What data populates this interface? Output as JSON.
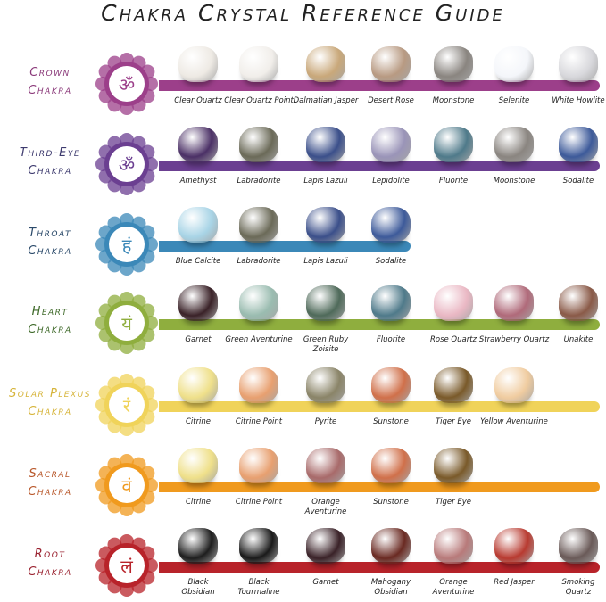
{
  "title": "Chakra Crystal Reference Guide",
  "chakras": [
    {
      "line1": "Crown",
      "line2": "Chakra",
      "color": "#9c3f8a",
      "text_color": "#8b3a7a",
      "symbol": "om-icon",
      "band_end": "full",
      "stones": [
        {
          "name": "Clear Quartz",
          "color": "#eeeae4"
        },
        {
          "name": "Clear Quartz Point",
          "color": "#f1eeea"
        },
        {
          "name": "Dalmatian Jasper",
          "color": "#c9a87a"
        },
        {
          "name": "Desert Rose",
          "color": "#b89a82"
        },
        {
          "name": "Moonstone",
          "color": "#8a8580"
        },
        {
          "name": "Selenite",
          "color": "#f4f6fa"
        },
        {
          "name": "White Howlite",
          "color": "#d8d8dc"
        }
      ]
    },
    {
      "line1": "Third-Eye",
      "line2": "Chakra",
      "color": "#6b3f91",
      "text_color": "#3d3a6e",
      "symbol": "om-icon",
      "band_end": "full",
      "stones": [
        {
          "name": "Amethyst",
          "color": "#4b3066"
        },
        {
          "name": "Labradorite",
          "color": "#6b6a58"
        },
        {
          "name": "Lapis Lazuli",
          "color": "#3b4f8a"
        },
        {
          "name": "Lepidolite",
          "color": "#9a94b8"
        },
        {
          "name": "Fluorite",
          "color": "#4f7a8a"
        },
        {
          "name": "Moonstone",
          "color": "#8a8580"
        },
        {
          "name": "Sodalite",
          "color": "#3d5a9a"
        }
      ]
    },
    {
      "line1": "Throat",
      "line2": "Chakra",
      "color": "#3b88b8",
      "text_color": "#2b4a6a",
      "symbol": "ham-icon",
      "band_end": "short",
      "stones": [
        {
          "name": "Blue Calcite",
          "color": "#a8d4e6"
        },
        {
          "name": "Labradorite",
          "color": "#6b6a58"
        },
        {
          "name": "Lapis Lazuli",
          "color": "#3b4f8a"
        },
        {
          "name": "Sodalite",
          "color": "#3d5a9a"
        }
      ]
    },
    {
      "line1": "Heart",
      "line2": "Chakra",
      "color": "#8fae3e",
      "text_color": "#3f6a2a",
      "symbol": "yam-icon",
      "band_end": "full",
      "stones": [
        {
          "name": "Garnet",
          "color": "#3a2228"
        },
        {
          "name": "Green Aventurine",
          "color": "#9abcb0"
        },
        {
          "name": "Green Ruby Zoisite",
          "color": "#4f6a5a"
        },
        {
          "name": "Fluorite",
          "color": "#4f7a8a"
        },
        {
          "name": "Rose Quartz",
          "color": "#eab8c4"
        },
        {
          "name": "Strawberry Quartz",
          "color": "#b06a7a"
        },
        {
          "name": "Unakite",
          "color": "#8a5a48"
        }
      ]
    },
    {
      "line1": "Solar Plexus",
      "line2": "Chakra",
      "color": "#f0d35a",
      "text_color": "#d6b43a",
      "symbol": "ram-icon",
      "band_end": "full",
      "stones": [
        {
          "name": "Citrine",
          "color": "#efe08a"
        },
        {
          "name": "Citrine Point",
          "color": "#e8a070"
        },
        {
          "name": "Pyrite",
          "color": "#8a8468"
        },
        {
          "name": "Sunstone",
          "color": "#d0704a"
        },
        {
          "name": "Tiger Eye",
          "color": "#7a5a2a"
        },
        {
          "name": "Yellow Aventurine",
          "color": "#f0cca0"
        }
      ]
    },
    {
      "line1": "Sacral",
      "line2": "Chakra",
      "color": "#f09a1e",
      "text_color": "#b8572a",
      "symbol": "vam-icon",
      "band_end": "full",
      "stones": [
        {
          "name": "Citrine",
          "color": "#efe08a"
        },
        {
          "name": "Citrine Point",
          "color": "#e8a070"
        },
        {
          "name": "Orange Aventurine",
          "color": "#a86a6a"
        },
        {
          "name": "Sunstone",
          "color": "#d0704a"
        },
        {
          "name": "Tiger Eye",
          "color": "#7a5a2a"
        }
      ]
    },
    {
      "line1": "Root",
      "line2": "Chakra",
      "color": "#b8232a",
      "text_color": "#9a2230",
      "symbol": "lam-icon",
      "band_end": "full",
      "stones": [
        {
          "name": "Black Obsidian",
          "color": "#1e1e1e"
        },
        {
          "name": "Black Tourmaline",
          "color": "#1a1a1a"
        },
        {
          "name": "Garnet",
          "color": "#3a2228"
        },
        {
          "name": "Mahogany Obsidian",
          "color": "#6a2a22"
        },
        {
          "name": "Orange Aventurine",
          "color": "#b87a7a"
        },
        {
          "name": "Red Jasper",
          "color": "#b83a30"
        },
        {
          "name": "Smoking Quartz",
          "color": "#6a5a58"
        }
      ]
    }
  ]
}
